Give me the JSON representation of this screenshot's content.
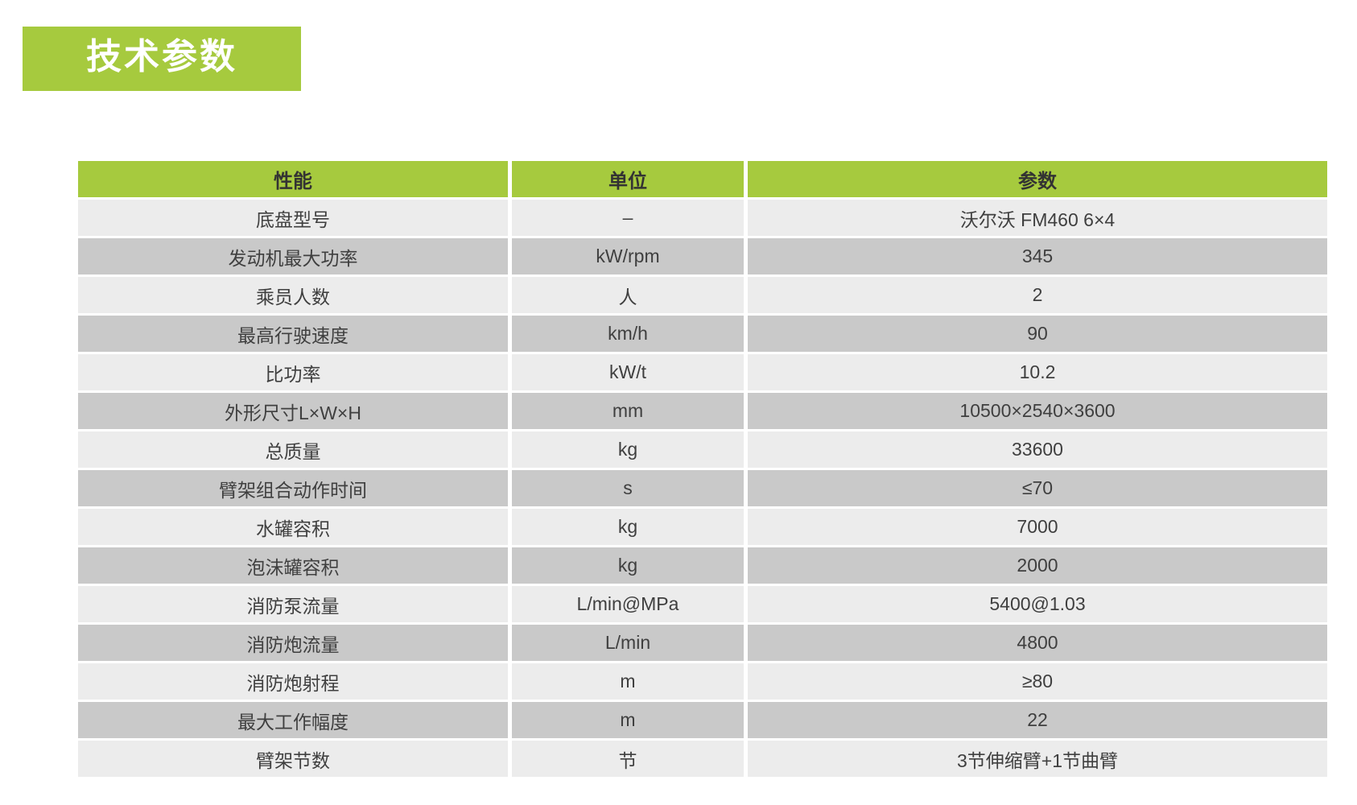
{
  "title": "技术参数",
  "colors": {
    "accent_green": "#a6ca3e",
    "row_light": "#ececec",
    "row_dark": "#c9c9c9",
    "title_text": "#ffffff",
    "body_text": "#3f3f3f"
  },
  "table": {
    "headers": {
      "name": "性能",
      "unit": "单位",
      "value": "参数"
    },
    "rows": [
      {
        "name": "底盘型号",
        "unit": "–",
        "value": "沃尔沃 FM460 6×4"
      },
      {
        "name": "发动机最大功率",
        "unit": "kW/rpm",
        "value": "345"
      },
      {
        "name": "乘员人数",
        "unit": "人",
        "value": "2"
      },
      {
        "name": "最高行驶速度",
        "unit": "km/h",
        "value": "90"
      },
      {
        "name": "比功率",
        "unit": "kW/t",
        "value": "10.2"
      },
      {
        "name": "外形尺寸L×W×H",
        "unit": "mm",
        "value": "10500×2540×3600"
      },
      {
        "name": "总质量",
        "unit": "kg",
        "value": "33600"
      },
      {
        "name": "臂架组合动作时间",
        "unit": "s",
        "value": "≤70"
      },
      {
        "name": "水罐容积",
        "unit": "kg",
        "value": "7000"
      },
      {
        "name": "泡沫罐容积",
        "unit": "kg",
        "value": "2000"
      },
      {
        "name": "消防泵流量",
        "unit": "L/min@MPa",
        "value": "5400@1.03"
      },
      {
        "name": "消防炮流量",
        "unit": "L/min",
        "value": "4800"
      },
      {
        "name": "消防炮射程",
        "unit": "m",
        "value": "≥80"
      },
      {
        "name": "最大工作幅度",
        "unit": "m",
        "value": "22"
      },
      {
        "name": "臂架节数",
        "unit": "节",
        "value": "3节伸缩臂+1节曲臂"
      }
    ]
  }
}
